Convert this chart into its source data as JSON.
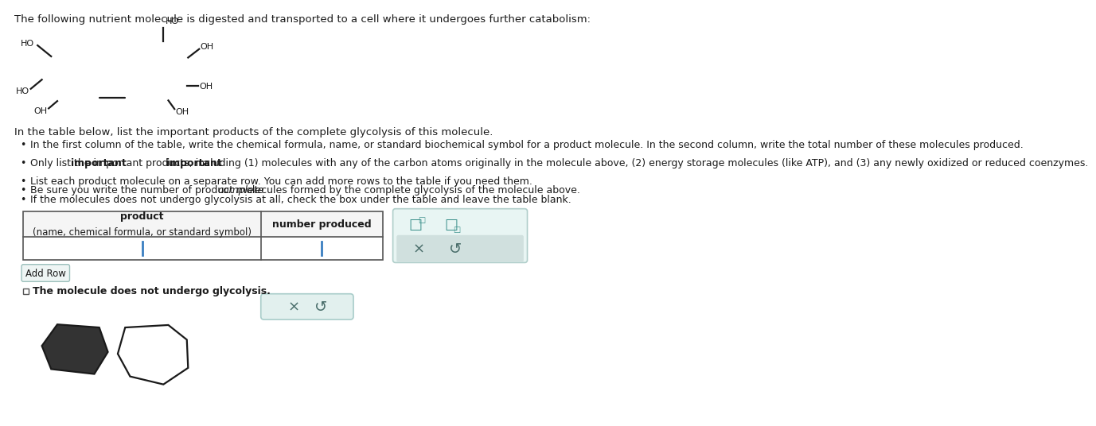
{
  "bg_color": "#ffffff",
  "title_text": "The following nutrient molecule is digested and transported to a cell where it undergoes further catabolism:",
  "title_fontsize": 9.5,
  "body_text": "In the table below, list the important products of the complete glycolysis of this molecule.",
  "bullet1": "In the first column of the table, write the chemical formula, name, or standard biochemical symbol for a product molecule. In the second column, write the total number of these molecules produced.",
  "bullet2_part1": "Only list the ",
  "bullet2_bold": "important",
  "bullet2_part2": " products, including (1) molecules with any of the carbon atoms originally in the molecule above, (2) energy storage molecules (like ATP), and (3) any newly oxidized or reduced coenzymes.",
  "bullet3": "List each product molecule on a separate row. You can add more rows to the table if you need them.",
  "bullet4_pre": "Be sure you write the number of product molecules formed by the ",
  "bullet4_italic": "complete",
  "bullet4_post": " glycolysis of the molecule above.",
  "bullet5": "If the molecules does not undergo glycolysis at all, check the box under the table and leave the table blank.",
  "table_header1_line1": "product",
  "table_header1_line2": "(name, chemical formula, or standard symbol)",
  "table_header2": "number produced",
  "checkbox_label": "The molecule does not undergo glycolysis.",
  "add_row_label": "Add Row",
  "text_color": "#1a1a1a",
  "table_border_color": "#555555",
  "input_cursor_color": "#3a7fc1",
  "panel_bg": "#e8f5f3",
  "panel_border": "#b0ceca",
  "gray_btn_bg": "#d0e0de",
  "btn_text_color": "#4a6e6b",
  "add_row_bg": "#eef5f4",
  "add_row_border": "#9abfbb",
  "bottom_btn_bg": "#e2f0ee",
  "bottom_btn_border": "#a8ccc9",
  "molecule_lw": 1.6,
  "mol_color": "#1a1a1a",
  "mol_label_fs": 8.0
}
